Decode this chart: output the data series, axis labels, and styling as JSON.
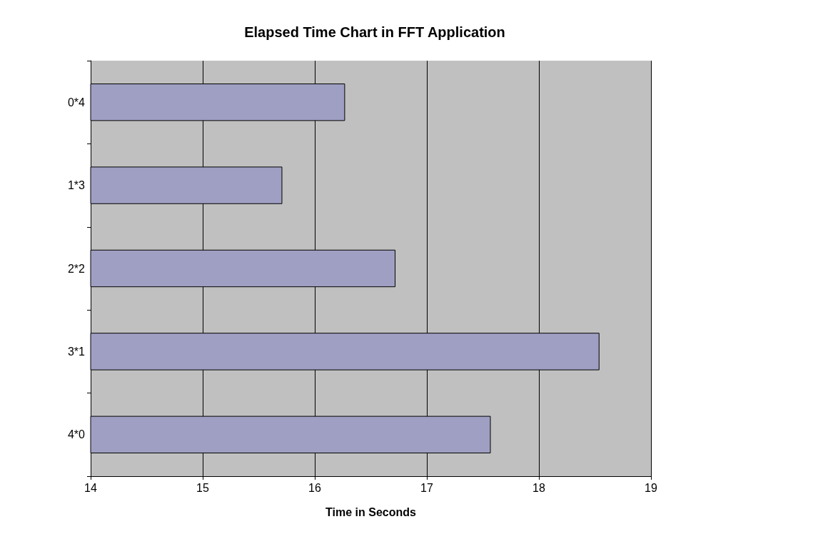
{
  "chart_data": {
    "type": "bar",
    "orientation": "horizontal",
    "title": "Elapsed Time Chart in FFT Application",
    "xlabel": "Time in Seconds",
    "categories": [
      "0*4",
      "1*3",
      "2*2",
      "3*1",
      "4*0"
    ],
    "values": [
      16.27,
      15.71,
      16.72,
      18.54,
      17.57
    ],
    "color": "#9f9fc3",
    "xlim": [
      14,
      19
    ],
    "xticks": [
      14,
      15,
      16,
      17,
      18,
      19
    ],
    "grid": "x"
  }
}
